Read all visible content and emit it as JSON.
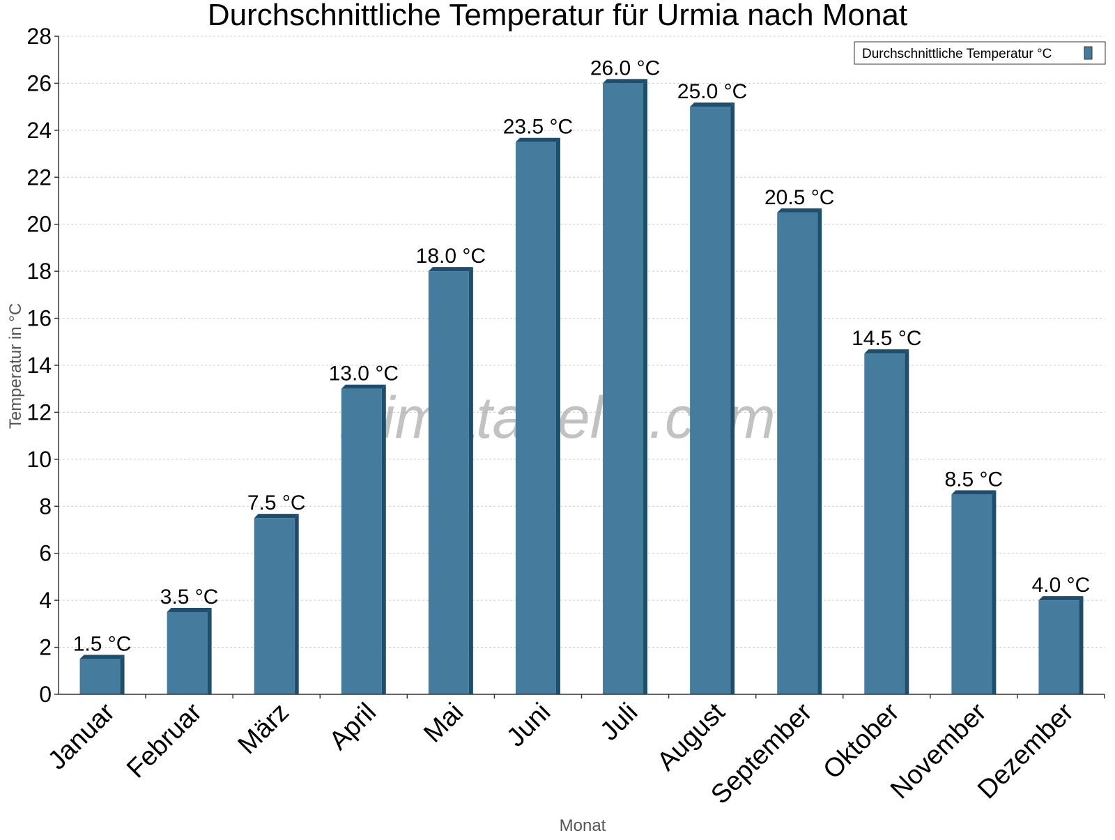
{
  "chart_data": {
    "type": "bar",
    "title": "Durchschnittliche Temperatur für Urmia nach Monat",
    "xlabel": "Monat",
    "ylabel": "Temperatur in °C",
    "categories": [
      "Januar",
      "Februar",
      "März",
      "April",
      "Mai",
      "Juni",
      "Juli",
      "August",
      "September",
      "Oktober",
      "November",
      "Dezember"
    ],
    "series": [
      {
        "name": "Durchschnittliche Temperatur °C",
        "values": [
          1.5,
          3.5,
          7.5,
          13.0,
          18.0,
          23.5,
          26.0,
          25.0,
          20.5,
          14.5,
          8.5,
          4.0
        ],
        "data_labels": [
          "1.5 °C",
          "3.5 °C",
          "7.5 °C",
          "13.0 °C",
          "18.0 °C",
          "23.5 °C",
          "26.0 °C",
          "25.0 °C",
          "20.5 °C",
          "14.5 °C",
          "8.5 °C",
          "4.0 °C"
        ]
      }
    ],
    "ylim": [
      0,
      28
    ],
    "yticks": [
      0,
      2,
      4,
      6,
      8,
      10,
      12,
      14,
      16,
      18,
      20,
      22,
      24,
      26,
      28
    ],
    "grid": true,
    "legend_position": "top-right",
    "watermark": "klimatabelle.com",
    "colors": {
      "bar": "#457b9d",
      "bar_dark": "#1d4e6e",
      "grid": "#cccccc",
      "axis": "#333333",
      "text": "#000000",
      "axis_label": "#555555"
    }
  }
}
